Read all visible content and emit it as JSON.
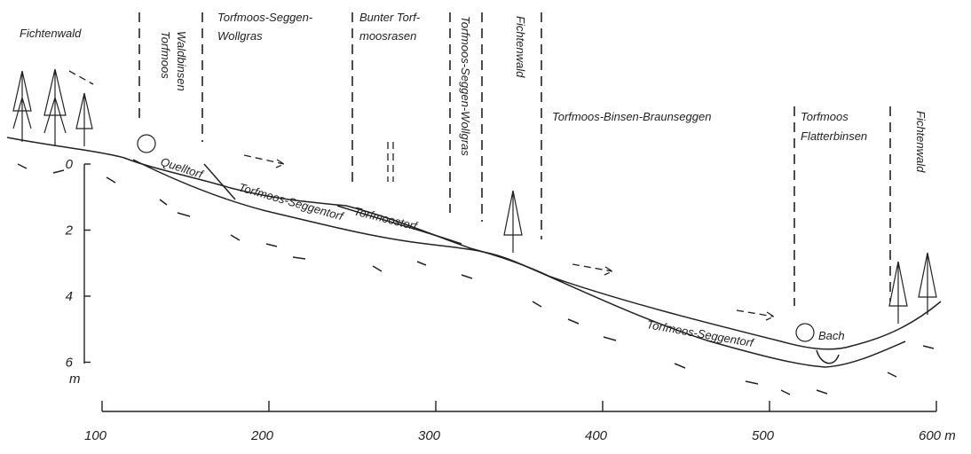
{
  "zones": [
    {
      "lines": [
        "Fichtenwald"
      ]
    },
    {
      "lines": [
        "Torfmoos",
        "Waldbinsen"
      ]
    },
    {
      "lines": [
        "Torfmoos-Seggen-",
        "Wollgras"
      ]
    },
    {
      "lines": [
        "Bunter Torf-",
        "moosrasen"
      ]
    },
    {
      "lines": [
        "Torfmoos-Seggen-Wollgras"
      ]
    },
    {
      "lines": [
        "Fichtenwald"
      ]
    },
    {
      "lines": [
        "Torfmoos-Binsen-Braunseggen"
      ]
    },
    {
      "lines": [
        "Torfmoos",
        "Flatterbinsen"
      ]
    },
    {
      "lines": [
        "Fichtenwald"
      ]
    }
  ],
  "layers": [
    "Quelltorf",
    "Torfmoos-Seggentorf",
    "Torfmoostorf",
    "Torfmoos-Seggentorf",
    "Bach"
  ],
  "depth_axis": {
    "ticks": [
      "0",
      "2",
      "4",
      "6"
    ],
    "unit": "m"
  },
  "distance_axis": {
    "ticks": [
      "100",
      "200",
      "300",
      "400",
      "500",
      "600 m"
    ]
  }
}
